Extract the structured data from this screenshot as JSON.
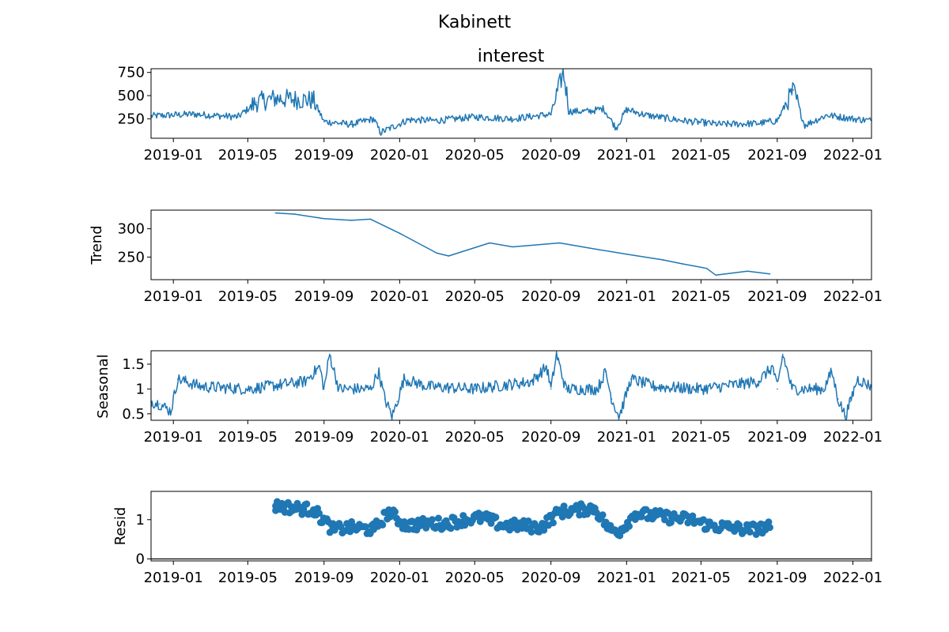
{
  "figure": {
    "suptitle": "Kabinett"
  },
  "x_ticks": [
    "2019-01",
    "2019-05",
    "2019-09",
    "2020-01",
    "2020-05",
    "2020-09",
    "2021-01",
    "2021-05",
    "2021-09",
    "2022-01"
  ],
  "colors": {
    "line": "#1f77b4",
    "axis": "#000000",
    "zero_line": "#000000"
  },
  "chart_data": [
    {
      "id": "observed",
      "type": "line",
      "title": "interest",
      "ylabel": "",
      "xlim": [
        "2018-11-26",
        "2022-01-31"
      ],
      "ylim": [
        40,
        790
      ],
      "yticks": [
        250,
        500,
        750
      ],
      "x": [
        "2018-11-26",
        "2019-02-01",
        "2019-04-15",
        "2019-05-15",
        "2019-06-15",
        "2019-07-15",
        "2019-08-15",
        "2019-09-01",
        "2019-10-15",
        "2019-11-20",
        "2019-12-01",
        "2020-01-15",
        "2020-03-01",
        "2020-05-01",
        "2020-07-01",
        "2020-09-01",
        "2020-09-21",
        "2020-10-01",
        "2020-11-01",
        "2020-11-25",
        "2020-12-15",
        "2021-01-01",
        "2021-02-01",
        "2021-04-01",
        "2021-06-01",
        "2021-08-01",
        "2021-09-01",
        "2021-09-27",
        "2021-10-15",
        "2021-11-20",
        "2022-01-01",
        "2022-01-31"
      ],
      "values": [
        280,
        300,
        270,
        430,
        470,
        460,
        450,
        220,
        190,
        250,
        100,
        240,
        230,
        270,
        250,
        300,
        750,
        330,
        330,
        360,
        150,
        350,
        290,
        230,
        190,
        200,
        230,
        560,
        180,
        290,
        250,
        230
      ]
    },
    {
      "id": "trend",
      "type": "line",
      "title": "",
      "ylabel": "Trend",
      "xlim": [
        "2018-11-26",
        "2022-01-31"
      ],
      "ylim": [
        210,
        333
      ],
      "yticks": [
        250,
        300
      ],
      "x": [
        "2019-06-15",
        "2019-07-15",
        "2019-09-01",
        "2019-10-15",
        "2019-11-15",
        "2020-01-01",
        "2020-03-01",
        "2020-03-20",
        "2020-05-25",
        "2020-07-01",
        "2020-09-15",
        "2020-11-01",
        "2021-01-01",
        "2021-03-01",
        "2021-04-01",
        "2021-05-10",
        "2021-05-25",
        "2021-07-15",
        "2021-08-20"
      ],
      "values": [
        328,
        326,
        318,
        315,
        317,
        292,
        257,
        252,
        275,
        268,
        275,
        266,
        255,
        245,
        238,
        230,
        218,
        225,
        220
      ]
    },
    {
      "id": "seasonal",
      "type": "line",
      "title": "",
      "ylabel": "Seasonal",
      "xlim": [
        "2018-11-26",
        "2022-01-31"
      ],
      "ylim": [
        0.37,
        1.77
      ],
      "yticks": [
        0.5,
        1.0,
        1.5
      ],
      "x": [
        "2018-11-26",
        "2018-12-10",
        "2018-12-28",
        "2019-01-08",
        "2019-02-15",
        "2019-05-01",
        "2019-08-01",
        "2019-08-25",
        "2019-09-01",
        "2019-09-10",
        "2019-09-25",
        "2019-11-15",
        "2019-11-28",
        "2019-12-08",
        "2019-12-20",
        "2019-12-28",
        "2020-01-08",
        "2020-02-15",
        "2020-05-01",
        "2020-08-01",
        "2020-08-25",
        "2020-09-01",
        "2020-09-10",
        "2020-09-25",
        "2020-11-15",
        "2020-11-28",
        "2020-12-08",
        "2020-12-20",
        "2020-12-28",
        "2021-01-08",
        "2021-02-15",
        "2021-05-01",
        "2021-08-01",
        "2021-08-25",
        "2021-09-01",
        "2021-09-10",
        "2021-09-25",
        "2021-11-15",
        "2021-11-28",
        "2021-12-08",
        "2021-12-20",
        "2021-12-28",
        "2022-01-08",
        "2022-01-31"
      ],
      "values": [
        0.75,
        0.7,
        0.55,
        1.2,
        1.05,
        1.0,
        1.15,
        1.45,
        1.0,
        1.7,
        1.0,
        1.0,
        1.35,
        0.8,
        0.45,
        0.75,
        1.2,
        1.05,
        1.0,
        1.15,
        1.45,
        1.0,
        1.7,
        1.0,
        1.0,
        1.35,
        0.8,
        0.45,
        0.75,
        1.2,
        1.05,
        1.0,
        1.15,
        1.45,
        1.0,
        1.7,
        1.0,
        1.0,
        1.35,
        0.8,
        0.45,
        0.75,
        1.2,
        1.05
      ]
    },
    {
      "id": "resid",
      "type": "scatter",
      "title": "",
      "ylabel": "Resid",
      "xlim": [
        "2018-11-26",
        "2022-01-31"
      ],
      "ylim": [
        -0.05,
        1.72
      ],
      "yticks": [
        0,
        1
      ],
      "zero_line": 0,
      "x": [
        "2019-06-15",
        "2019-07-15",
        "2019-08-15",
        "2019-09-15",
        "2019-10-15",
        "2019-11-20",
        "2019-12-15",
        "2020-01-10",
        "2020-02-15",
        "2020-03-15",
        "2020-04-15",
        "2020-05-15",
        "2020-06-15",
        "2020-07-15",
        "2020-08-15",
        "2020-09-15",
        "2020-10-15",
        "2020-11-10",
        "2020-12-05",
        "2020-12-20",
        "2021-01-15",
        "2021-02-15",
        "2021-03-15",
        "2021-04-15",
        "2021-05-15",
        "2021-06-15",
        "2021-07-15",
        "2021-08-20"
      ],
      "values": [
        1.35,
        1.3,
        1.25,
        0.75,
        0.8,
        0.75,
        1.2,
        0.85,
        0.9,
        0.9,
        1.0,
        1.05,
        0.85,
        0.85,
        0.8,
        1.2,
        1.25,
        1.3,
        0.75,
        0.7,
        1.15,
        1.1,
        1.05,
        1.0,
        0.85,
        0.8,
        0.75,
        0.8
      ]
    }
  ]
}
